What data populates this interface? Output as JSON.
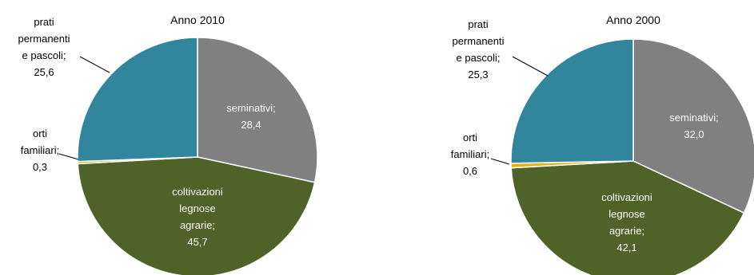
{
  "chart_data": [
    {
      "type": "pie",
      "title": "Anno 2010",
      "slices": [
        {
          "name": "seminativi",
          "value": 28.4,
          "value_label": "28,4",
          "color": "#808080",
          "label_lines": [
            "seminativi;",
            "28,4"
          ]
        },
        {
          "name": "coltivazioni legnose agrarie",
          "value": 45.7,
          "value_label": "45,7",
          "color": "#4f6228",
          "label_lines": [
            "coltivazioni",
            "legnose",
            "agrarie;",
            "45,7"
          ]
        },
        {
          "name": "orti familiari",
          "value": 0.3,
          "value_label": "0,3",
          "color": "#e2b312",
          "label_lines": [
            "orti",
            "familiari;",
            "0,3"
          ]
        },
        {
          "name": "prati permanenti e pascoli",
          "value": 25.6,
          "value_label": "25,6",
          "color": "#31859c",
          "label_lines": [
            "prati",
            "permanenti",
            "e pascoli;",
            "25,6"
          ]
        }
      ]
    },
    {
      "type": "pie",
      "title": "Anno 2000",
      "slices": [
        {
          "name": "seminativi",
          "value": 32.0,
          "value_label": "32,0",
          "color": "#808080",
          "label_lines": [
            "seminativi;",
            "32,0"
          ]
        },
        {
          "name": "coltivazioni legnose agrarie",
          "value": 42.1,
          "value_label": "42,1",
          "color": "#4f6228",
          "label_lines": [
            "coltivazioni",
            "legnose",
            "agrarie;",
            "42,1"
          ]
        },
        {
          "name": "orti familiari",
          "value": 0.6,
          "value_label": "0,6",
          "color": "#e2b312",
          "label_lines": [
            "orti",
            "familiari;",
            "0,6"
          ]
        },
        {
          "name": "prati permanenti e pascoli",
          "value": 25.3,
          "value_label": "25,3",
          "color": "#31859c",
          "label_lines": [
            "prati",
            "permanenti",
            "e pascoli;",
            "25,3"
          ]
        }
      ]
    }
  ]
}
